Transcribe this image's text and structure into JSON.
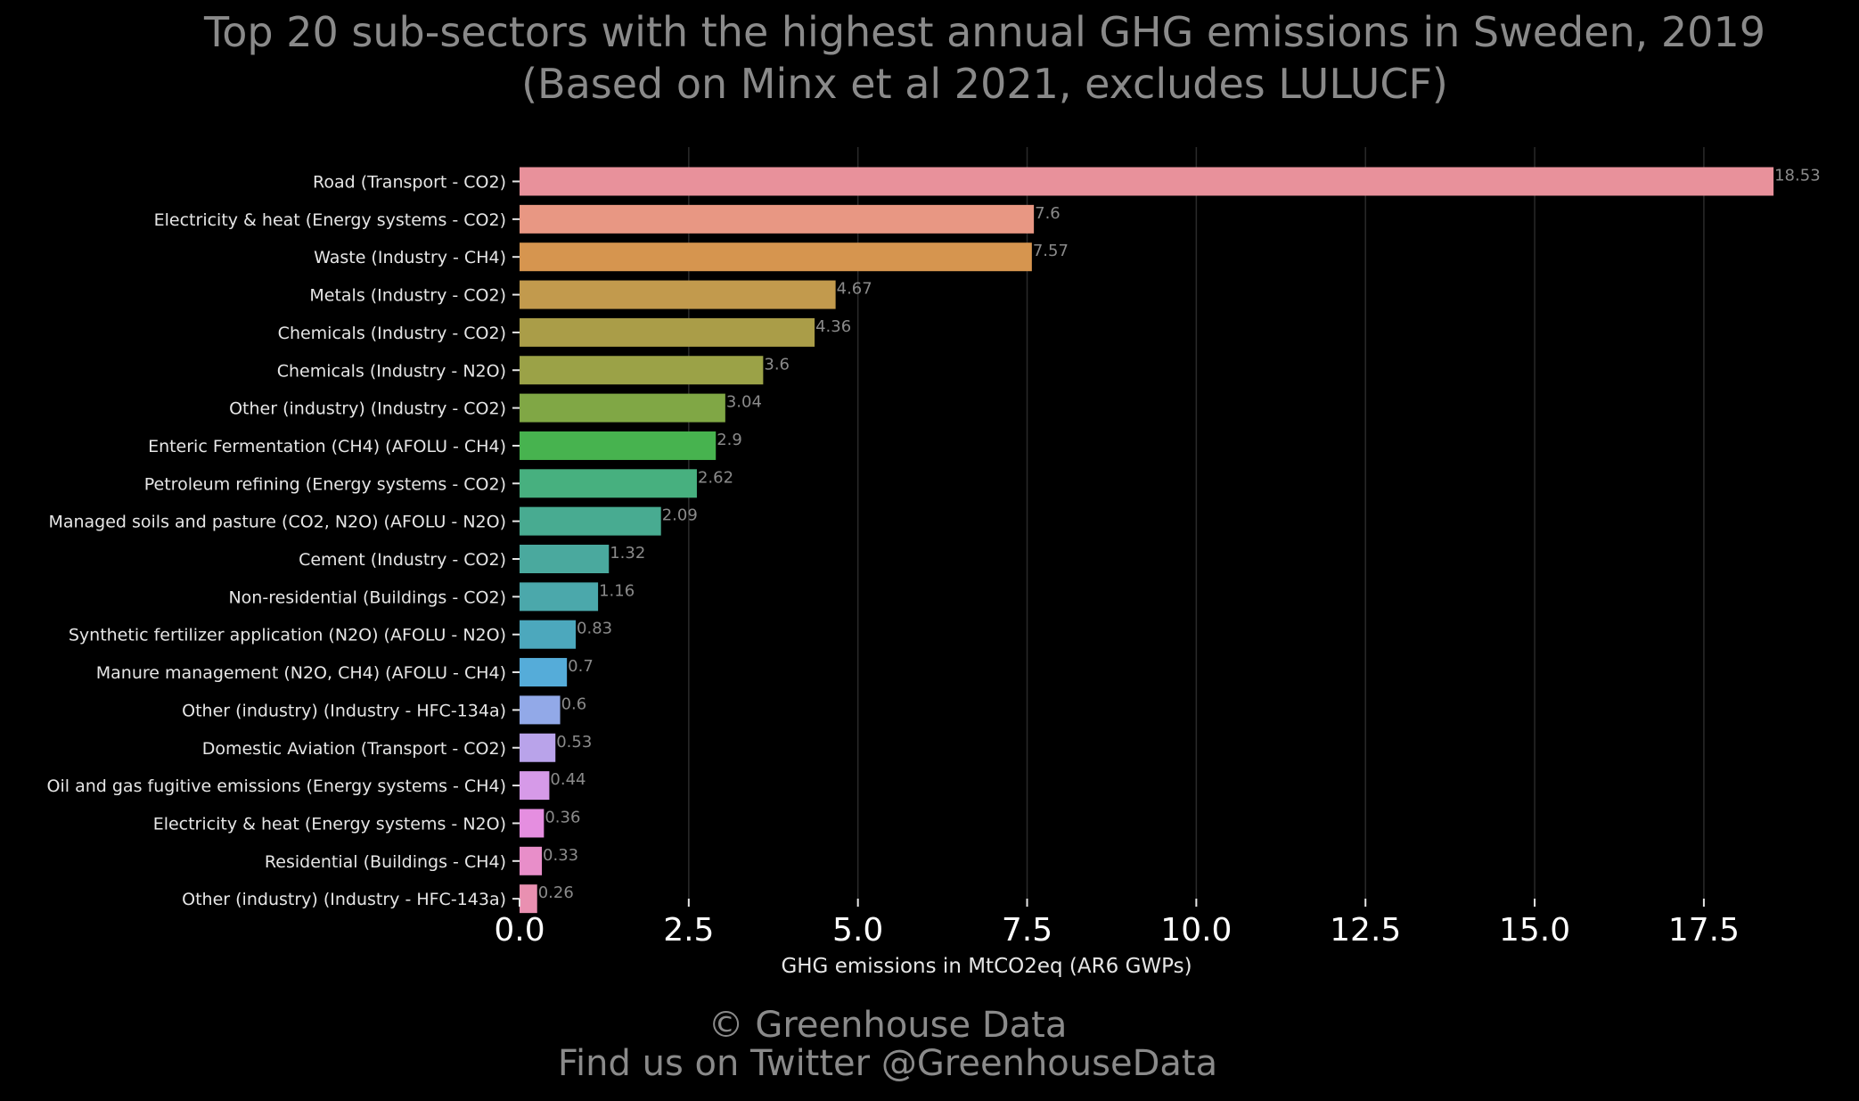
{
  "title": {
    "line1": "Top 20 sub-sectors with the highest annual GHG emissions in Sweden, 2019",
    "line2": "(Based on Minx et al 2021, excludes LULUCF)"
  },
  "footer": {
    "line1": "© Greenhouse Data",
    "line2": "Find us on Twitter @GreenhouseData"
  },
  "chart_data": {
    "type": "bar",
    "orientation": "horizontal",
    "xlabel": "GHG emissions in MtCO2eq (AR6 GWPs)",
    "ylabel": "",
    "xlim": [
      0,
      19.2
    ],
    "xticks": [
      0.0,
      2.5,
      5.0,
      7.5,
      10.0,
      12.5,
      15.0,
      17.5
    ],
    "xtick_labels": [
      "0.0",
      "2.5",
      "5.0",
      "7.5",
      "10.0",
      "12.5",
      "15.0",
      "17.5"
    ],
    "grid": "vertical",
    "categories": [
      "Road (Transport - CO2)",
      "Electricity & heat (Energy systems - CO2)",
      "Waste (Industry - CH4)",
      "Metals (Industry - CO2)",
      "Chemicals (Industry - CO2)",
      "Chemicals (Industry - N2O)",
      "Other (industry) (Industry - CO2)",
      "Enteric Fermentation (CH4) (AFOLU - CH4)",
      "Petroleum refining (Energy systems - CO2)",
      "Managed soils and pasture (CO2, N2O) (AFOLU - N2O)",
      "Cement (Industry - CO2)",
      "Non-residential (Buildings - CO2)",
      "Synthetic fertilizer application (N2O) (AFOLU - N2O)",
      "Manure management (N2O, CH4) (AFOLU - CH4)",
      "Other (industry) (Industry - HFC-134a)",
      "Domestic Aviation (Transport - CO2)",
      "Oil and gas fugitive emissions (Energy systems - CH4)",
      "Electricity & heat (Energy systems - N2O)",
      "Residential (Buildings - CH4)",
      "Other (industry) (Industry - HFC-143a)"
    ],
    "values": [
      18.53,
      7.6,
      7.57,
      4.67,
      4.36,
      3.6,
      3.04,
      2.9,
      2.62,
      2.09,
      1.32,
      1.16,
      0.83,
      0.7,
      0.6,
      0.53,
      0.44,
      0.36,
      0.33,
      0.26
    ],
    "value_labels": [
      "18.53",
      "7.6",
      "7.57",
      "4.67",
      "4.36",
      "3.6",
      "3.04",
      "2.9",
      "2.62",
      "2.09",
      "1.32",
      "1.16",
      "0.83",
      "0.7",
      "0.6",
      "0.53",
      "0.44",
      "0.36",
      "0.33",
      "0.26"
    ],
    "colors": [
      "#e8919b",
      "#e89783",
      "#d6954f",
      "#c29a4d",
      "#aa9d48",
      "#9ba247",
      "#80a745",
      "#47b34f",
      "#47b07f",
      "#48ab91",
      "#4aa99e",
      "#4ba8ab",
      "#4ca8bd",
      "#55acd9",
      "#92a9e8",
      "#b9a3ea",
      "#d69ae8",
      "#e58ee0",
      "#e88ec9",
      "#e990b1"
    ]
  }
}
